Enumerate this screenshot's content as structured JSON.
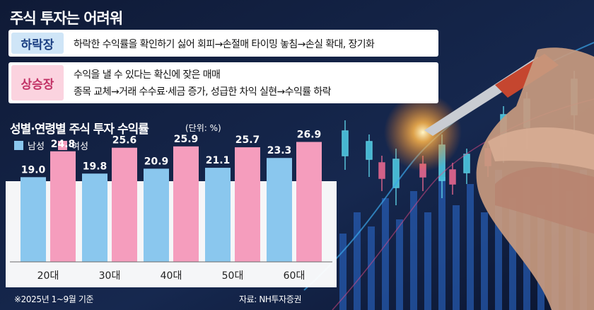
{
  "title": "주식 투자는 어려워",
  "rows": [
    {
      "tag": "하락장",
      "lines": [
        "하락한 수익률을 확인하기 싫어 회피→손절매 타이밍 놓침→손실 확대, 장기화"
      ]
    },
    {
      "tag": "상승장",
      "lines": [
        "수익을 낼 수 있다는 확신에 잦은 매매",
        "종목 교체→거래 수수료·세금 증가, 성급한 차익 실현→수익률 하락"
      ]
    }
  ],
  "footnote": "※2025년 1~9월 기준",
  "source": "자료: NH투자증권",
  "colors": {
    "male": "#8ac7ee",
    "female": "#f59dbd",
    "fall_tag": "#cfe5f7",
    "rise_tag": "#fbd3df",
    "plot_band": "#ffffff"
  },
  "chart_data": {
    "type": "bar",
    "title": "성별·연령별 주식 투자 수익률",
    "unit": "(단위: %)",
    "categories": [
      "20대",
      "30대",
      "40대",
      "50대",
      "60대"
    ],
    "series": [
      {
        "name": "남성",
        "values": [
          19.0,
          19.8,
          20.9,
          21.1,
          23.3
        ]
      },
      {
        "name": "여성",
        "values": [
          24.8,
          25.6,
          25.9,
          25.7,
          26.9
        ]
      }
    ],
    "legend_position": "top-left",
    "grid": false
  }
}
